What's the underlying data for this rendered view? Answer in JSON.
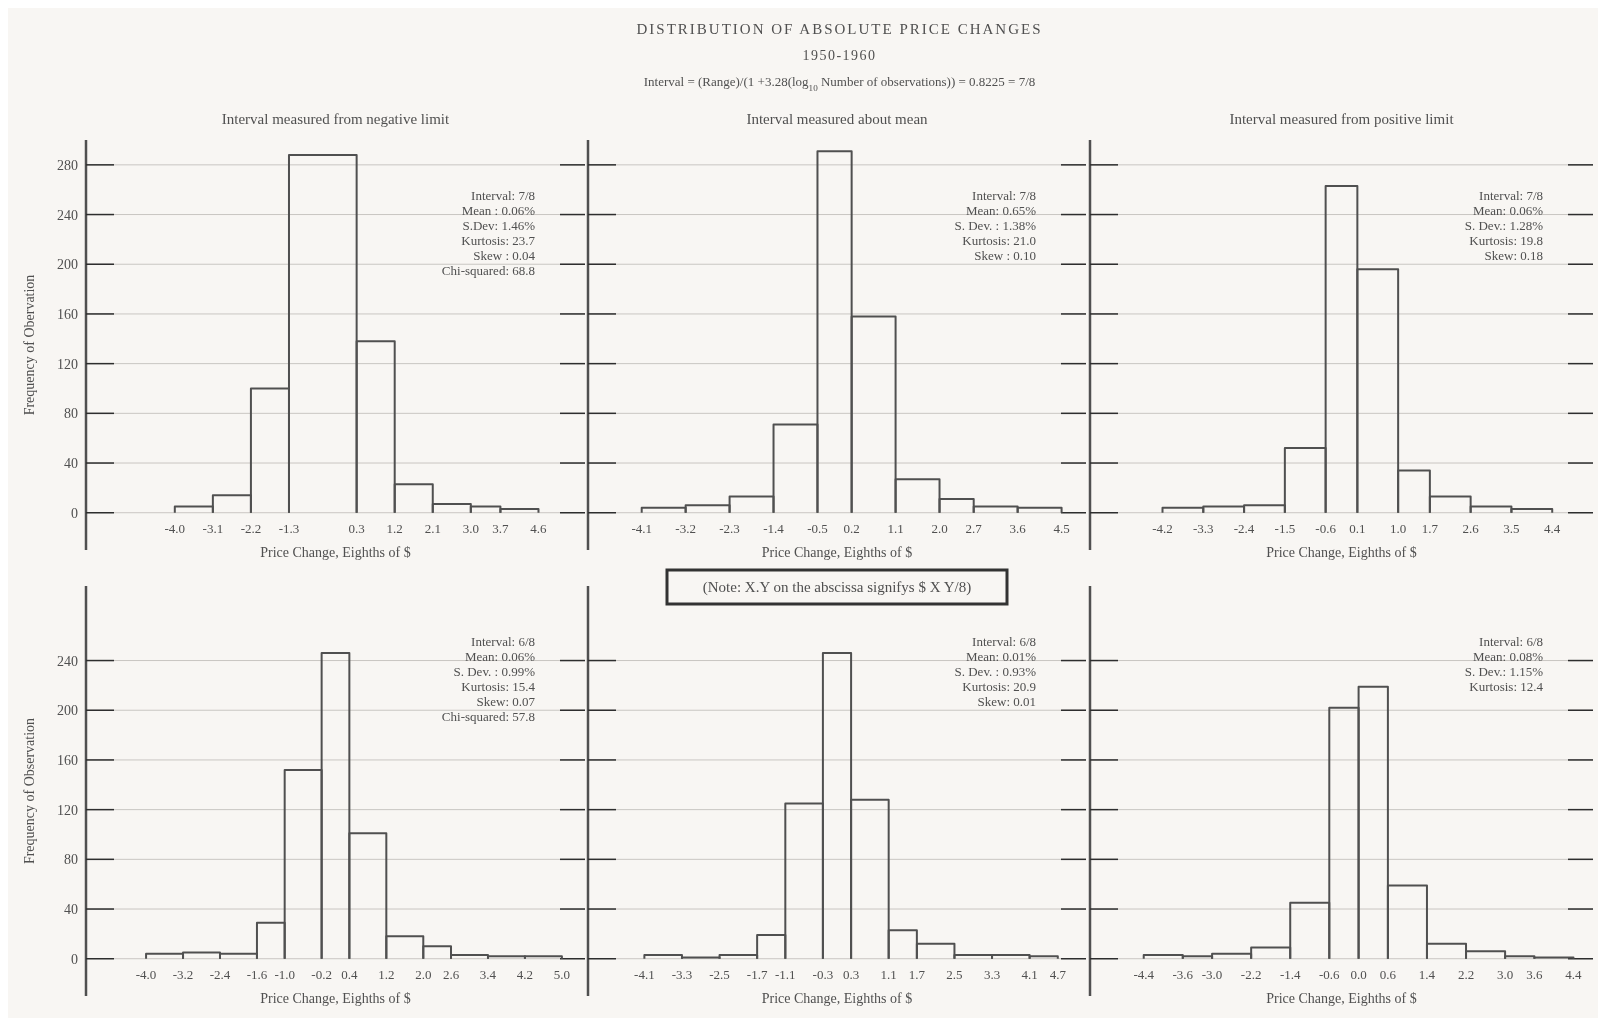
{
  "chart_data": [
    {
      "type": "other",
      "title": "DISTRIBUTION OF ABSOLUTE PRICE CHANGES",
      "subtitle": "1950-1960",
      "annotations": [
        "Interval = (Range)/(1 +3.28(log$_{10}$ Number of observations)) = 0.8225 = 7/8"
      ]
    },
    {
      "type": "histogram",
      "title": "Interval measured from negative limit",
      "xlabel": "Price Change,  Eighths of $",
      "ylabel": "Frequency of Obervation",
      "bins": [
        -4.0,
        -3.1,
        -2.2,
        -1.3,
        0.3,
        1.2,
        2.1,
        3.0,
        3.7,
        4.6
      ],
      "values": [
        5,
        14,
        100,
        288,
        138,
        23,
        7,
        5,
        3
      ],
      "color": "#505050",
      "xlim": [
        -6.1,
        5.7
      ],
      "xticks": [
        {
          "value": -4.0,
          "label": "-4.0"
        },
        -3.1,
        -2.2,
        -1.3,
        0.3,
        1.2,
        2.1,
        {
          "value": 3.0,
          "label": "3.0"
        },
        3.7,
        4.6
      ],
      "ylim": [
        -30,
        300
      ],
      "yticks": [
        0,
        40,
        80,
        120,
        160,
        200,
        240,
        280
      ],
      "grid": "y",
      "annotations": [
        "Interval: 7/8",
        "Mean : 0.06%",
        "S.Dev: 1.46%",
        "Kurtosis: 23.7",
        "Skew : 0.04",
        "Chi-squared: 68.8"
      ]
    },
    {
      "type": "histogram",
      "title": "Interval measured about mean",
      "xlabel": "Price Change,  Eighths of $",
      "bins": [
        -4.1,
        -3.2,
        -2.3,
        -1.4,
        -0.5,
        0.2,
        1.1,
        2.0,
        2.7,
        3.6,
        4.5
      ],
      "values": [
        4,
        6,
        13,
        71,
        291,
        158,
        27,
        11,
        5,
        4
      ],
      "color": "#505050",
      "xlim": [
        -5.2,
        5.0
      ],
      "xticks": [
        -4.1,
        -3.2,
        -2.3,
        -1.4,
        -0.5,
        0.2,
        1.1,
        {
          "value": 2.0,
          "label": "2.0"
        },
        2.7,
        3.6,
        4.5
      ],
      "ylim": [
        -30,
        300
      ],
      "yticks": [
        0,
        40,
        80,
        120,
        160,
        200,
        240,
        280
      ],
      "grid": "y",
      "tick_labels": "x",
      "annotations": [
        "Interval: 7/8",
        "Mean: 0.65%",
        "S. Dev. : 1.38%",
        "Kurtosis: 21.0",
        "Skew : 0.10"
      ]
    },
    {
      "type": "histogram",
      "title": "Interval measured from positive limit",
      "xlabel": "Price Change,  Eighths of $",
      "bins": [
        -4.2,
        -3.3,
        -2.4,
        -1.5,
        -0.6,
        0.1,
        1.0,
        1.7,
        2.6,
        3.5,
        4.4
      ],
      "values": [
        4,
        5,
        6,
        52,
        263,
        196,
        34,
        13,
        5,
        3
      ],
      "color": "#505050",
      "xlim": [
        -5.8,
        5.3
      ],
      "xticks": [
        -4.2,
        -3.3,
        -2.4,
        -1.5,
        -0.6,
        0.1,
        {
          "value": 1.0,
          "label": "1.0"
        },
        1.7,
        2.6,
        3.5,
        4.4
      ],
      "ylim": [
        -30,
        300
      ],
      "yticks": [
        0,
        40,
        80,
        120,
        160,
        200,
        240,
        280
      ],
      "grid": "y",
      "tick_labels": "x",
      "annotations": [
        "Interval: 7/8",
        "Mean: 0.06%",
        "S. Dev.: 1.28%",
        "Kurtosis: 19.8",
        "Skew: 0.18"
      ]
    },
    {
      "type": "histogram",
      "xlabel": "Price Change,  Eighths of $",
      "ylabel": "Frequency of Observation",
      "bins": [
        -4.0,
        -3.2,
        -2.4,
        -1.6,
        -1.0,
        -0.2,
        0.4,
        1.2,
        2.0,
        2.6,
        3.4,
        4.2,
        5.0
      ],
      "values": [
        4,
        5,
        4,
        29,
        152,
        246,
        101,
        18,
        10,
        3,
        2,
        2
      ],
      "color": "#505050",
      "xlim": [
        -5.3,
        5.5
      ],
      "xticks": [
        {
          "value": -4.0,
          "label": "-4.0"
        },
        -3.2,
        -2.4,
        -1.6,
        {
          "value": -1.0,
          "label": "-1.0"
        },
        -0.2,
        0.4,
        1.2,
        {
          "value": 2.0,
          "label": "2.0"
        },
        2.6,
        3.4,
        4.2,
        {
          "value": 5.0,
          "label": "5.0"
        }
      ],
      "ylim": [
        -30,
        300
      ],
      "yticks": [
        0,
        40,
        80,
        120,
        160,
        200,
        240
      ],
      "grid": "y",
      "annotations": [
        "Interval: 6/8",
        "Mean: 0.06%",
        "S. Dev.  : 0.99%",
        "Kurtosis: 15.4",
        "Skew: 0.07",
        "Chi-squared: 57.8"
      ]
    },
    {
      "type": "histogram",
      "subtitle": "(Note: X.Y on the abscissa signifys $ X Y/8)",
      "xlabel": "Price Change,  Eighths of $",
      "bins": [
        -4.1,
        -3.3,
        -2.5,
        -1.7,
        -1.1,
        -0.3,
        0.3,
        1.1,
        1.7,
        2.5,
        3.3,
        4.1,
        4.7
      ],
      "values": [
        3,
        1,
        3,
        19,
        125,
        246,
        128,
        23,
        12,
        3,
        3,
        2
      ],
      "color": "#505050",
      "xlim": [
        -5.3,
        5.3
      ],
      "xticks": [
        -4.1,
        -3.3,
        -2.5,
        -1.7,
        -1.1,
        -0.3,
        0.3,
        1.1,
        1.7,
        2.5,
        3.3,
        4.1,
        4.7
      ],
      "ylim": [
        -30,
        300
      ],
      "yticks": [
        0,
        40,
        80,
        120,
        160,
        200,
        240
      ],
      "grid": "y",
      "tick_labels": "x",
      "annotations": [
        "Interval: 6/8",
        "Mean: 0.01%",
        "S. Dev. : 0.93%",
        "Kurtosis: 20.9",
        "Skew: 0.01"
      ]
    },
    {
      "type": "histogram",
      "xlabel": "Price Change,  Eighths of $",
      "bins": [
        -4.4,
        -3.6,
        -3.0,
        -2.2,
        -1.4,
        -0.6,
        0.0,
        0.6,
        1.4,
        2.2,
        3.0,
        3.6,
        4.4
      ],
      "values": [
        3,
        2,
        4,
        9,
        45,
        202,
        219,
        59,
        12,
        6,
        2,
        1
      ],
      "color": "#505050",
      "xlim": [
        -5.5,
        4.8
      ],
      "xticks": [
        -4.4,
        -3.6,
        {
          "value": -3.0,
          "label": "-3.0"
        },
        -2.2,
        -1.4,
        -0.6,
        {
          "value": 0.0,
          "label": "0.0"
        },
        0.6,
        1.4,
        2.2,
        {
          "value": 3.0,
          "label": "3.0"
        },
        3.6,
        4.4
      ],
      "ylim": [
        -30,
        300
      ],
      "yticks": [
        0,
        40,
        80,
        120,
        160,
        200,
        240
      ],
      "grid": "y",
      "tick_labels": "x",
      "annotations": [
        "Interval: 6/8",
        "Mean: 0.08%",
        "S. Dev.: 1.15%",
        "Kurtosis: 12.4"
      ]
    }
  ]
}
